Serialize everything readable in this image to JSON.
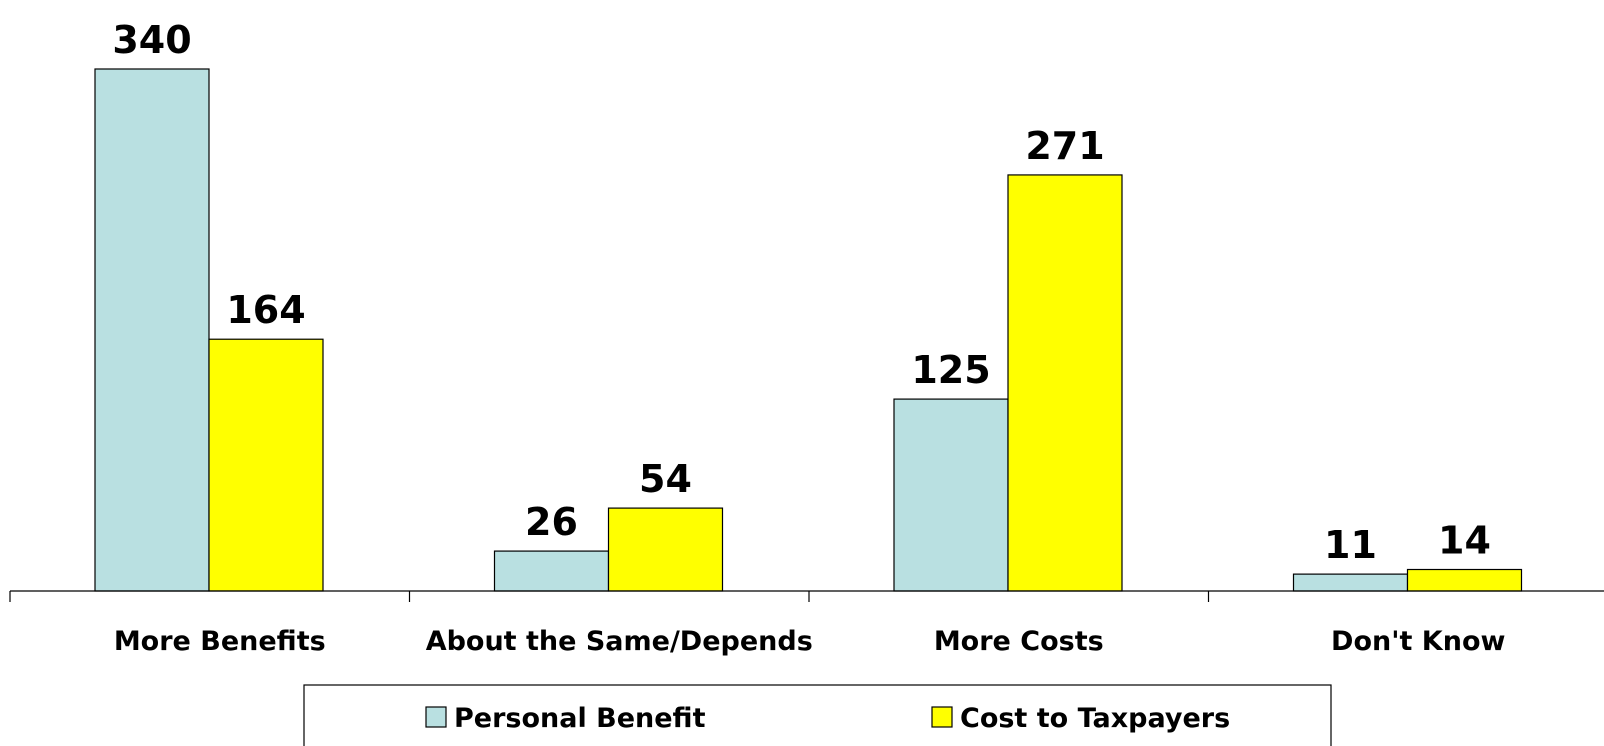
{
  "chart_data": {
    "type": "bar",
    "title": "",
    "xlabel": "",
    "ylabel": "",
    "categories": [
      "More Benefits",
      "About the Same/Depends",
      "More Costs",
      "Don't Know"
    ],
    "series": [
      {
        "name": "Personal Benefit",
        "values": [
          340,
          26,
          125,
          11
        ],
        "color": "#B9E0E1"
      },
      {
        "name": "Cost to Taxpayers",
        "values": [
          164,
          54,
          271,
          14
        ],
        "color": "#FFFF00"
      }
    ],
    "ylim": [
      0,
      340
    ],
    "grid": false,
    "axis_visible": false,
    "data_labels": true,
    "legend_position": "bottom"
  }
}
